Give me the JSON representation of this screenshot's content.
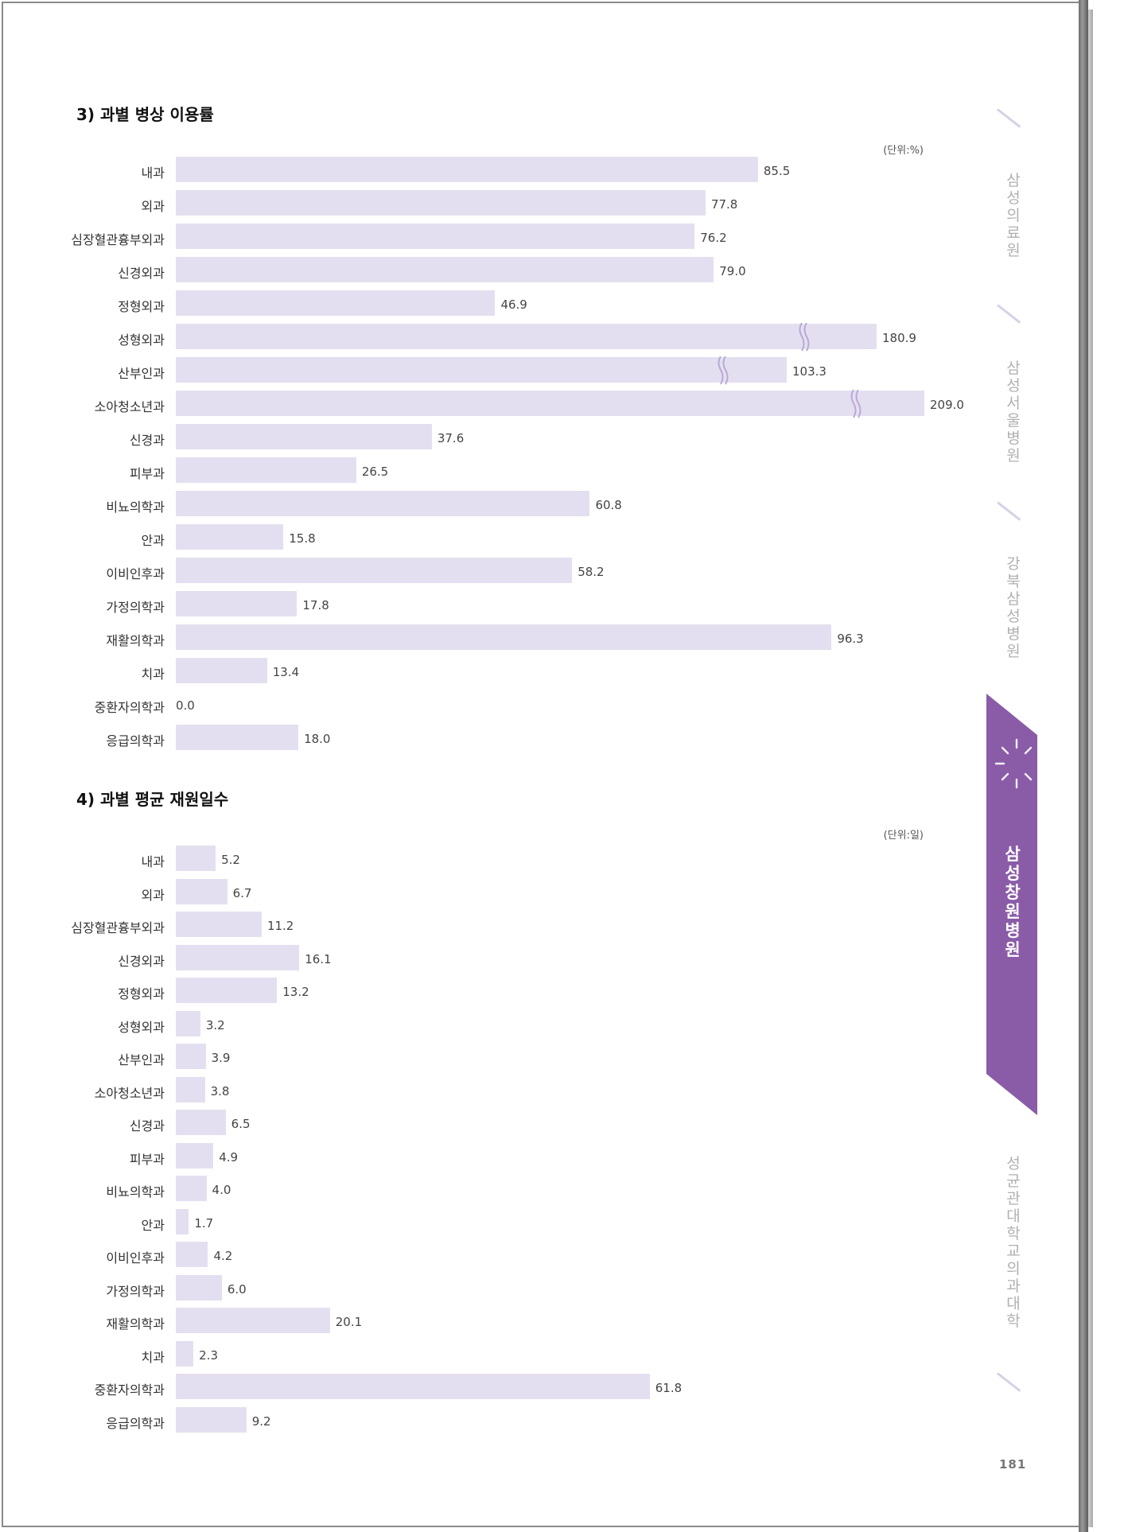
{
  "section3": {
    "title": "3) 과별 병상 이용률",
    "unit": "(단위:%)",
    "chart_data": {
      "type": "bar",
      "orientation": "horizontal",
      "categories": [
        "내과",
        "외과",
        "심장혈관흉부외과",
        "신경외과",
        "정형외과",
        "성형외과",
        "산부인과",
        "소아청소년과",
        "신경과",
        "피부과",
        "비뇨의학과",
        "안과",
        "이비인후과",
        "가정의학과",
        "재활의학과",
        "치과",
        "중환자의학과",
        "응급의학과"
      ],
      "values": [
        85.5,
        77.8,
        76.2,
        79.0,
        46.9,
        180.9,
        103.3,
        209.0,
        37.6,
        26.5,
        60.8,
        15.8,
        58.2,
        17.8,
        96.3,
        13.4,
        0.0,
        18.0
      ],
      "labels": [
        "85.5",
        "77.8",
        "76.2",
        "79.0",
        "46.9",
        "180.9",
        "103.3",
        "209.0",
        "37.6",
        "26.5",
        "60.8",
        "15.8",
        "58.2",
        "17.8",
        "96.3",
        "13.4",
        "0.0",
        "18.0"
      ],
      "axis_break": [
        "성형외과",
        "산부인과",
        "소아청소년과"
      ],
      "bar_color": "#e4dff0"
    }
  },
  "section4": {
    "title": "4) 과별 평균 재원일수",
    "unit": "(단위:일)",
    "chart_data": {
      "type": "bar",
      "orientation": "horizontal",
      "categories": [
        "내과",
        "외과",
        "심장혈관흉부외과",
        "신경외과",
        "정형외과",
        "성형외과",
        "산부인과",
        "소아청소년과",
        "신경과",
        "피부과",
        "비뇨의학과",
        "안과",
        "이비인후과",
        "가정의학과",
        "재활의학과",
        "치과",
        "중환자의학과",
        "응급의학과"
      ],
      "values": [
        5.2,
        6.7,
        11.2,
        16.1,
        13.2,
        3.2,
        3.9,
        3.8,
        6.5,
        4.9,
        4.0,
        1.7,
        4.2,
        6.0,
        20.1,
        2.3,
        61.8,
        9.2
      ],
      "labels": [
        "5.2",
        "6.7",
        "11.2",
        "16.1",
        "13.2",
        "3.2",
        "3.9",
        "3.8",
        "6.5",
        "4.9",
        "4.0",
        "1.7",
        "4.2",
        "6.0",
        "20.1",
        "2.3",
        "61.8",
        "9.2"
      ],
      "bar_color": "#e4dff0"
    }
  },
  "side_tabs": [
    {
      "label": "삼성의료원",
      "active": false
    },
    {
      "label": "삼성서울병원",
      "active": false
    },
    {
      "label": "강북삼성병원",
      "active": false
    },
    {
      "label": "삼성창원병원",
      "active": true
    },
    {
      "label": "성균관대학교 의과대학",
      "active": false
    }
  ],
  "colors": {
    "accent": "#8a5ca8",
    "bar": "#e4dff0",
    "tab_slash": "#d6d0e6"
  },
  "page_number": "181"
}
